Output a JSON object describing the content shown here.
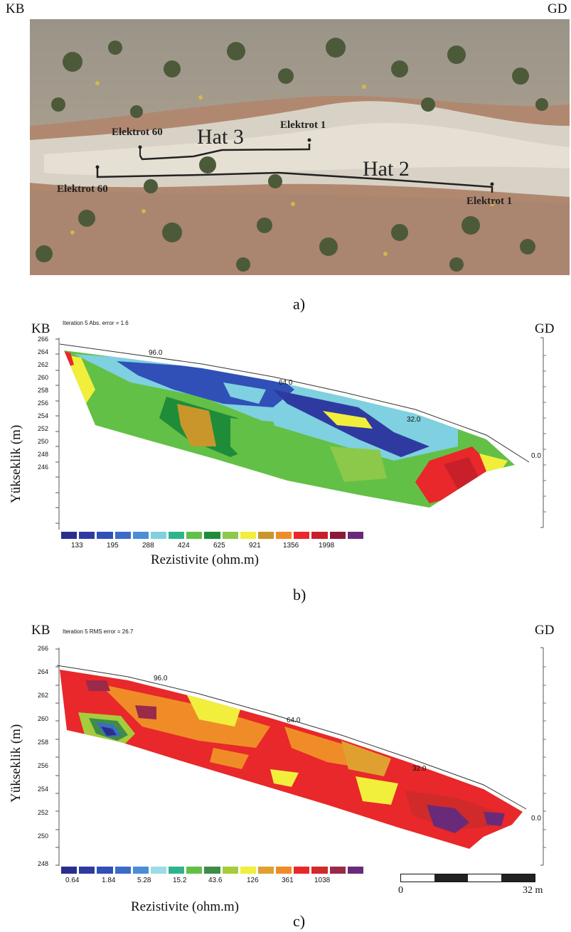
{
  "panel_a": {
    "corner_left": "KB",
    "corner_right": "GD",
    "labels": {
      "hat3": "Hat 3",
      "hat2": "Hat 2",
      "hat3_electrode_left": "Elektrot 60",
      "hat3_electrode_right": "Elektrot 1",
      "hat2_electrode_left": "Elektrot 60",
      "hat2_electrode_right": "Elektrot 1"
    },
    "caption": "a)"
  },
  "panel_b": {
    "corner_left": "KB",
    "corner_right": "GD",
    "iteration_text": "Iteration 5 Abs. error = 1.6",
    "y_axis_title": "Yükseklik (m)",
    "y_ticks": [
      "266",
      "264",
      "262",
      "260",
      "258",
      "256",
      "254",
      "252",
      "250",
      "248",
      "246"
    ],
    "surface_labels": [
      "96.0",
      "64.0",
      "32.0",
      "0.0"
    ],
    "legend_values": [
      "133",
      "195",
      "288",
      "424",
      "625",
      "921",
      "1356",
      "1998"
    ],
    "legend_title": "Rezistivite (ohm.m)",
    "caption": "b)"
  },
  "panel_c": {
    "corner_left": "KB",
    "corner_right": "GD",
    "iteration_text": "Iteration 5 RMS error = 26.7",
    "y_axis_title": "Yükseklik (m)",
    "y_ticks": [
      "266",
      "264",
      "262",
      "260",
      "258",
      "256",
      "254",
      "252",
      "250",
      "248"
    ],
    "surface_labels": [
      "96.0",
      "64.0",
      "32.0",
      "0.0"
    ],
    "legend_values": [
      "0.64",
      "1.84",
      "5.28",
      "15.2",
      "43.6",
      "126",
      "361",
      "1038"
    ],
    "legend_title": "Rezistivite (ohm.m)",
    "scale_left": "0",
    "scale_right": "32 m",
    "caption": "c)"
  },
  "colors": {
    "legend_b": [
      "#2a2f8c",
      "#2f3aa0",
      "#3050b8",
      "#3c6cc8",
      "#4a8ed6",
      "#7fd0e0",
      "#2fb48a",
      "#63c046",
      "#1f8c3a",
      "#8cc84a",
      "#f2ee3c",
      "#c8962a",
      "#f08c28",
      "#e8282a",
      "#c8202a",
      "#8a1a3a",
      "#6a2a7a"
    ],
    "legend_c": [
      "#2a2f8c",
      "#2f3aa0",
      "#3050b8",
      "#3c6cc8",
      "#4a8ed6",
      "#9ddbe6",
      "#2fb48a",
      "#63c046",
      "#3f8c4a",
      "#a6cc3c",
      "#f2ee3c",
      "#e0a030",
      "#f08c28",
      "#e8282a",
      "#d02a2a",
      "#9a2a4a",
      "#6a2a7a"
    ]
  }
}
